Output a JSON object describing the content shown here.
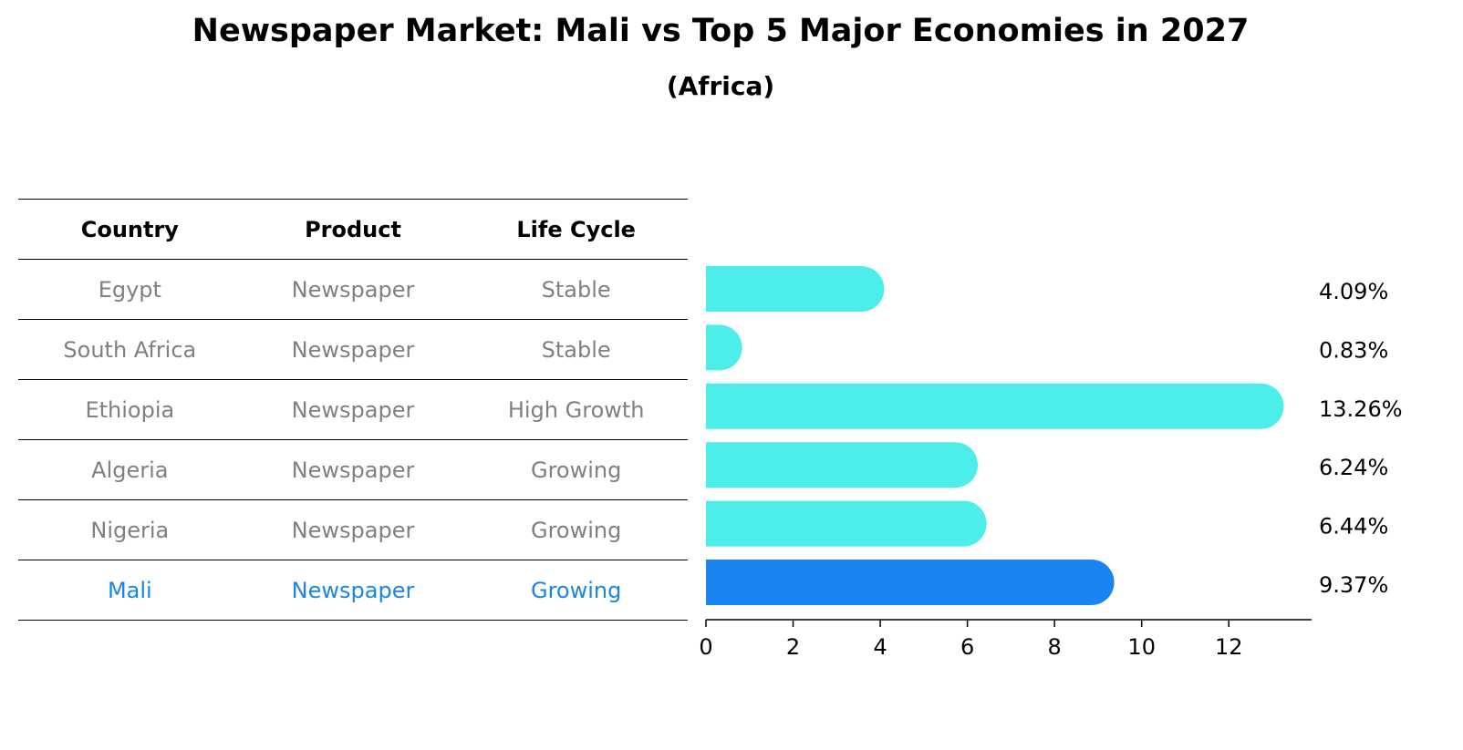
{
  "title": "Newspaper Market: Mali vs Top 5 Major Economies in 2027",
  "subtitle": "(Africa)",
  "table": {
    "headers": [
      "Country",
      "Product",
      "Life Cycle"
    ],
    "rows": [
      [
        "Egypt",
        "Newspaper",
        "Stable"
      ],
      [
        "South Africa",
        "Newspaper",
        "Stable"
      ],
      [
        "Ethiopia",
        "Newspaper",
        "High Growth"
      ],
      [
        "Algeria",
        "Newspaper",
        "Growing"
      ],
      [
        "Nigeria",
        "Newspaper",
        "Growing"
      ],
      [
        "Mali",
        "Newspaper",
        "Growing"
      ]
    ]
  },
  "colors": {
    "bar": "#4deeea",
    "highlight": "#1a85f0",
    "highlight_text": "#1a85e6",
    "muted_text": "#808080"
  },
  "chart_data": {
    "type": "bar",
    "orientation": "horizontal",
    "categories": [
      "Egypt",
      "South Africa",
      "Ethiopia",
      "Algeria",
      "Nigeria",
      "Mali"
    ],
    "values": [
      4.09,
      0.83,
      13.26,
      6.24,
      6.44,
      9.37
    ],
    "value_labels": [
      "4.09%",
      "0.83%",
      "13.26%",
      "6.24%",
      "6.44%",
      "9.37%"
    ],
    "highlight": "Mali",
    "xticks": [
      0,
      2,
      4,
      6,
      8,
      10,
      12
    ],
    "xlim": [
      0,
      13.9
    ]
  }
}
